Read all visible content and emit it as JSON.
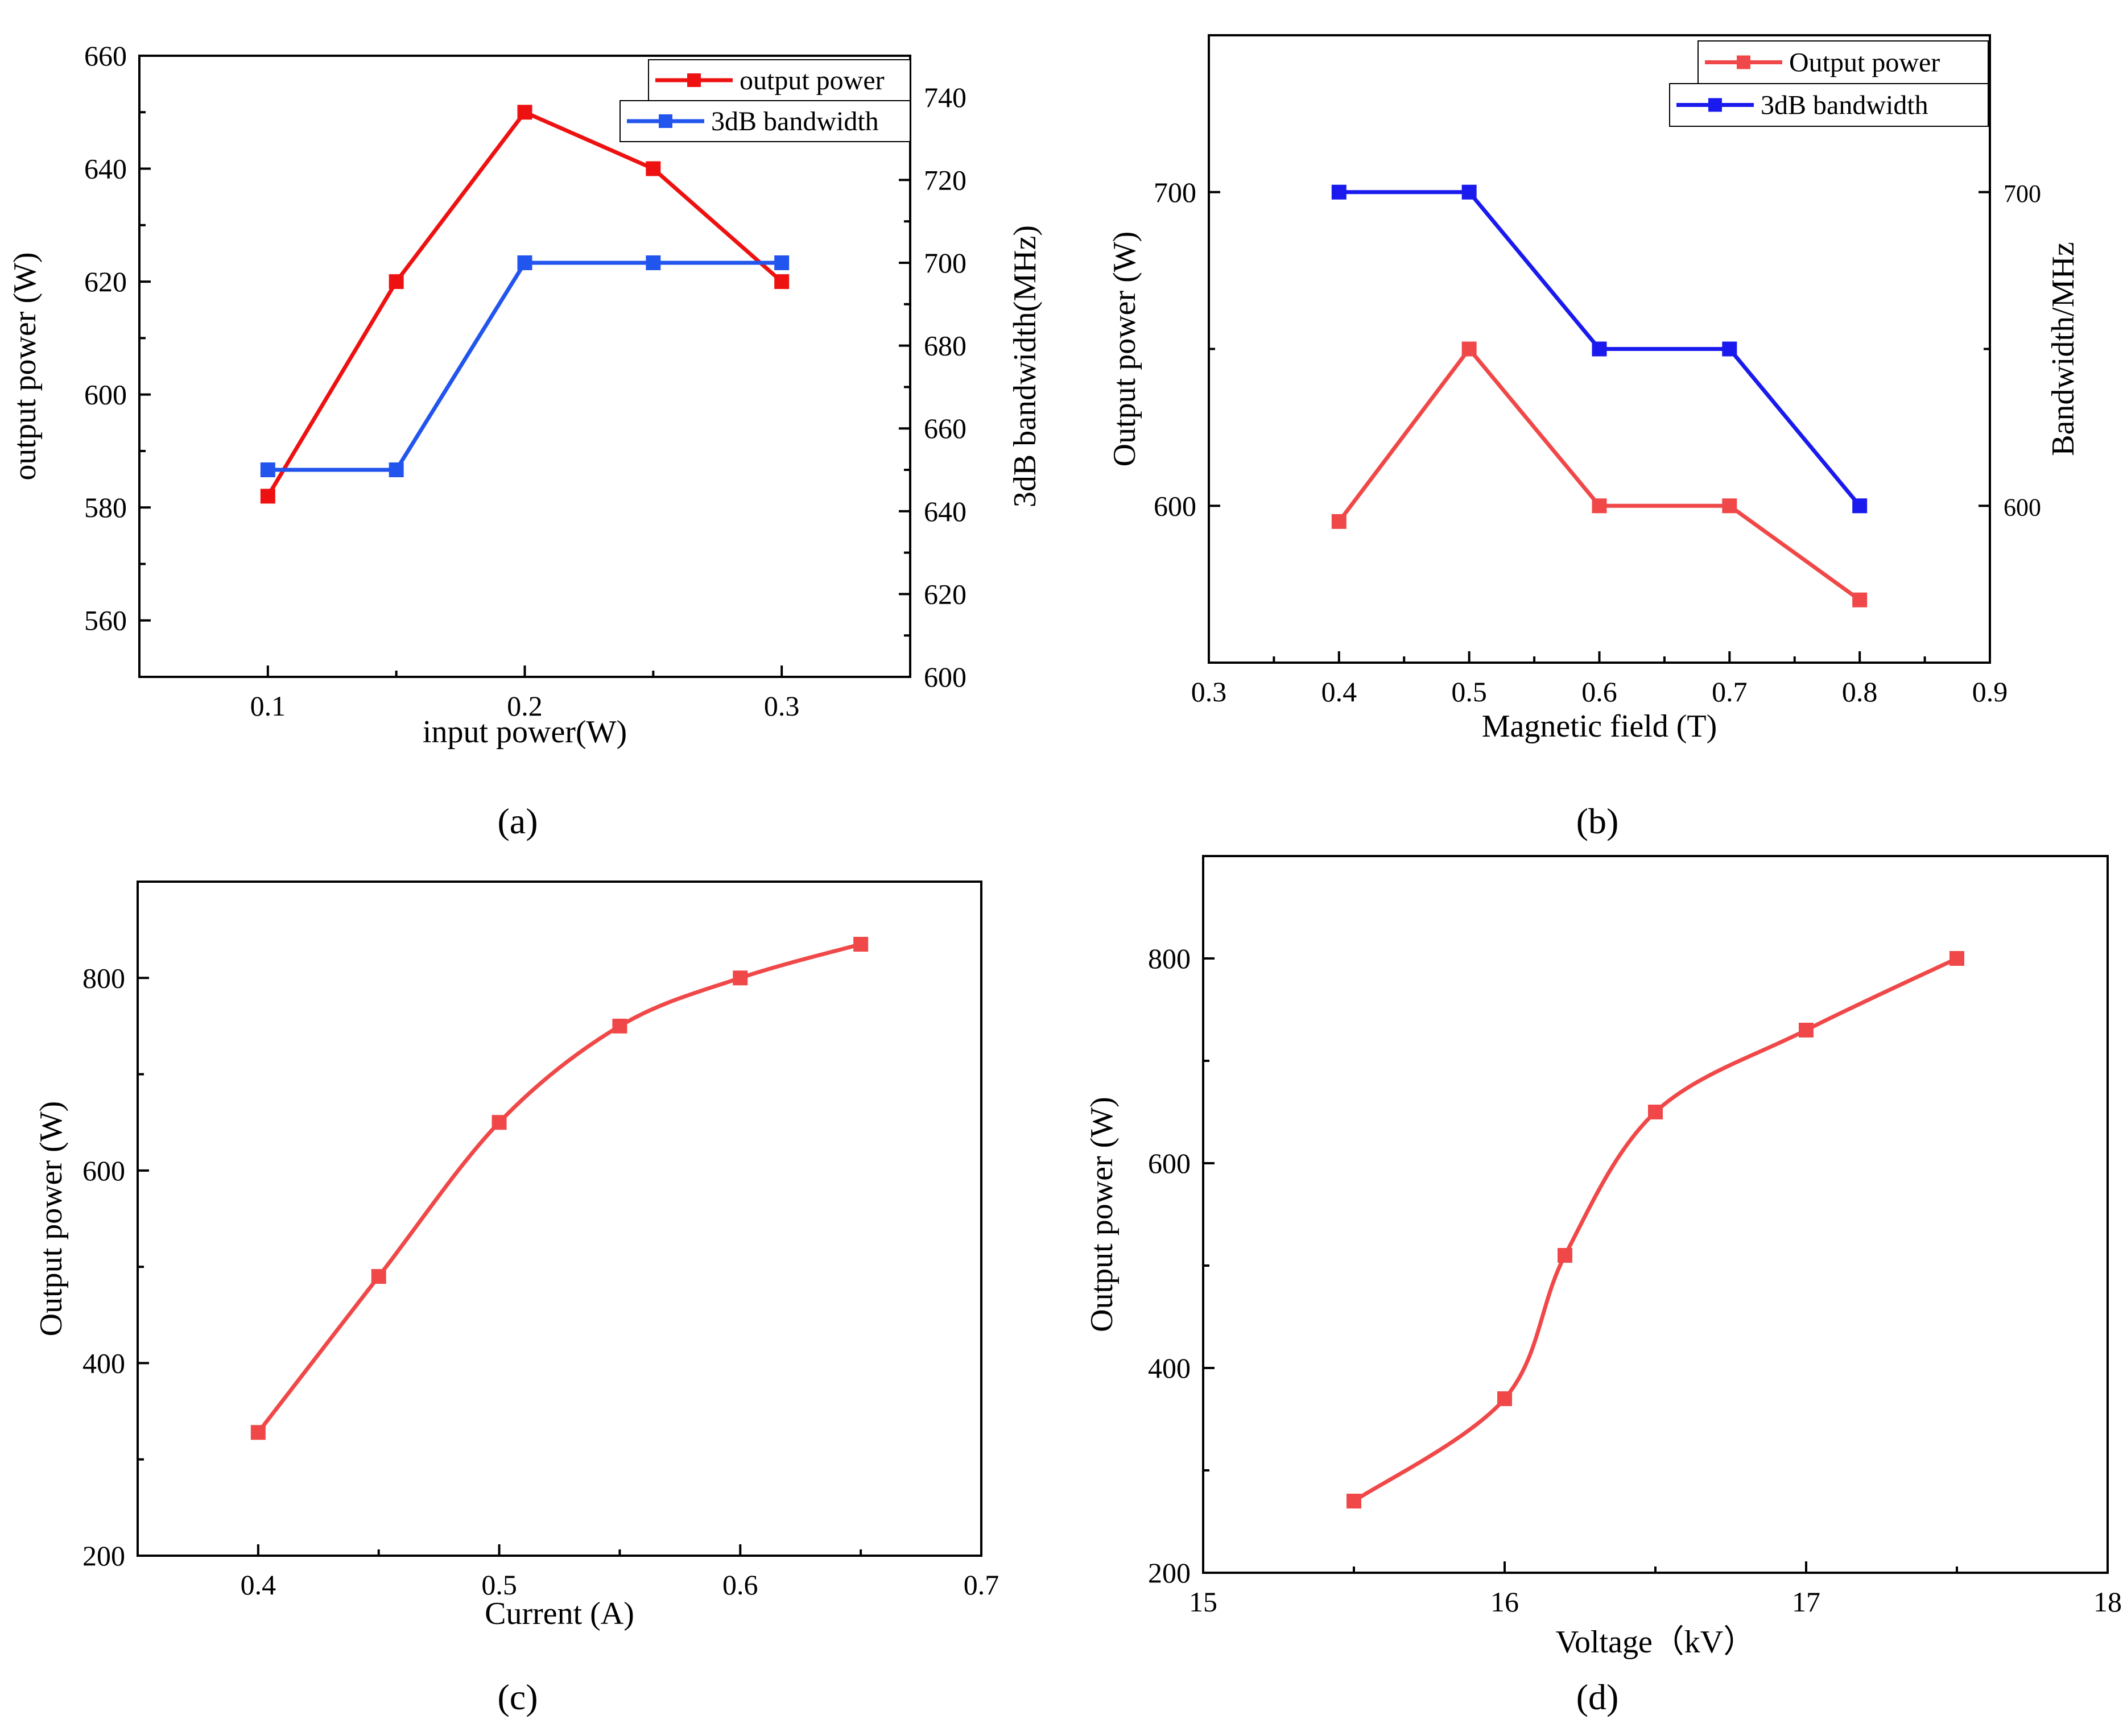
{
  "figure": {
    "panel_labels": [
      "(a)",
      "(b)",
      "(c)",
      "(d)"
    ]
  },
  "chart_data": [
    {
      "panel": "a",
      "label_letter": "a",
      "type": "line",
      "title": "",
      "xlabel": "input power(W)",
      "ylabel": "output power (W)",
      "y2label": "3dB bandwidth(MHz)",
      "xlim": [
        0.05,
        0.35
      ],
      "ylim": [
        550,
        660
      ],
      "y2lim": [
        600,
        750
      ],
      "xticks": [
        0.1,
        0.2,
        0.3
      ],
      "xtick_labels": [
        "0.1",
        "0.2",
        "0.3"
      ],
      "yticks": [
        560,
        580,
        600,
        620,
        640,
        660
      ],
      "ytick_labels": [
        "560",
        "580",
        "600",
        "620",
        "640",
        "660"
      ],
      "y2ticks": [
        600,
        620,
        640,
        660,
        680,
        700,
        720,
        740
      ],
      "y2tick_labels": [
        "600",
        "620",
        "640",
        "660",
        "680",
        "700",
        "720",
        "740"
      ],
      "legend_position": "top-right",
      "series": [
        {
          "name": "output power",
          "axis": "left",
          "color": "#ee1111",
          "x": [
            0.1,
            0.15,
            0.2,
            0.25,
            0.3
          ],
          "values": [
            582,
            620,
            650,
            640,
            620
          ]
        },
        {
          "name": "3dB bandwidth",
          "axis": "right",
          "color": "#2255ee",
          "x": [
            0.1,
            0.15,
            0.2,
            0.25,
            0.3
          ],
          "values": [
            650,
            650,
            700,
            700,
            700
          ]
        }
      ]
    },
    {
      "panel": "b",
      "label_letter": "b",
      "type": "line",
      "title": "",
      "xlabel": "Magnetic field (T)",
      "ylabel": "Output power (W)",
      "y2label": "Bandwidth/MHz",
      "xlim": [
        0.3,
        0.9
      ],
      "ylim": [
        550,
        750
      ],
      "y2lim": [
        550,
        750
      ],
      "xticks": [
        0.3,
        0.4,
        0.5,
        0.6,
        0.7,
        0.8,
        0.9
      ],
      "xtick_labels": [
        "0.3",
        "0.4",
        "0.5",
        "0.6",
        "0.7",
        "0.8",
        "0.9"
      ],
      "yticks": [
        600,
        700
      ],
      "ytick_labels": [
        "600",
        "700"
      ],
      "y2ticks": [
        600,
        700
      ],
      "y2tick_labels": [
        "600",
        "700"
      ],
      "legend_position": "top-right",
      "series": [
        {
          "name": "Output power",
          "axis": "left",
          "color": "#f04848",
          "x": [
            0.4,
            0.5,
            0.6,
            0.7,
            0.8
          ],
          "values": [
            595,
            650,
            600,
            600,
            570
          ]
        },
        {
          "name": "3dB bandwidth",
          "axis": "right",
          "color": "#1a1aee",
          "x": [
            0.4,
            0.5,
            0.6,
            0.7,
            0.8
          ],
          "values": [
            700,
            700,
            650,
            650,
            600
          ]
        }
      ]
    },
    {
      "panel": "c",
      "label_letter": "c",
      "type": "line",
      "title": "",
      "xlabel": "Current (A)",
      "ylabel": "Output power (W)",
      "xlim": [
        0.35,
        0.7
      ],
      "ylim": [
        200,
        900
      ],
      "xticks": [
        0.4,
        0.5,
        0.6,
        0.7
      ],
      "xtick_labels": [
        "0.4",
        "0.5",
        "0.6",
        "0.7"
      ],
      "yticks": [
        200,
        400,
        600,
        800
      ],
      "ytick_labels": [
        "200",
        "400",
        "600",
        "800"
      ],
      "smooth": true,
      "series": [
        {
          "name": "Output power",
          "axis": "left",
          "color": "#f04848",
          "x": [
            0.4,
            0.45,
            0.5,
            0.55,
            0.6,
            0.65
          ],
          "values": [
            328,
            490,
            650,
            750,
            800,
            835
          ]
        }
      ]
    },
    {
      "panel": "d",
      "label_letter": "d",
      "type": "line",
      "title": "",
      "xlabel": "Voltage（kV）",
      "ylabel": "Output power (W)",
      "xlim": [
        15,
        18
      ],
      "ylim": [
        200,
        900
      ],
      "xticks": [
        15,
        16,
        17,
        18
      ],
      "xtick_labels": [
        "15",
        "16",
        "17",
        "18"
      ],
      "yticks": [
        200,
        400,
        600,
        800
      ],
      "ytick_labels": [
        "200",
        "400",
        "600",
        "800"
      ],
      "smooth": true,
      "series": [
        {
          "name": "Output power",
          "axis": "left",
          "color": "#f04848",
          "x": [
            15.5,
            16.0,
            16.2,
            16.5,
            17.0,
            17.5
          ],
          "values": [
            270,
            370,
            510,
            650,
            730,
            800
          ]
        }
      ]
    }
  ]
}
